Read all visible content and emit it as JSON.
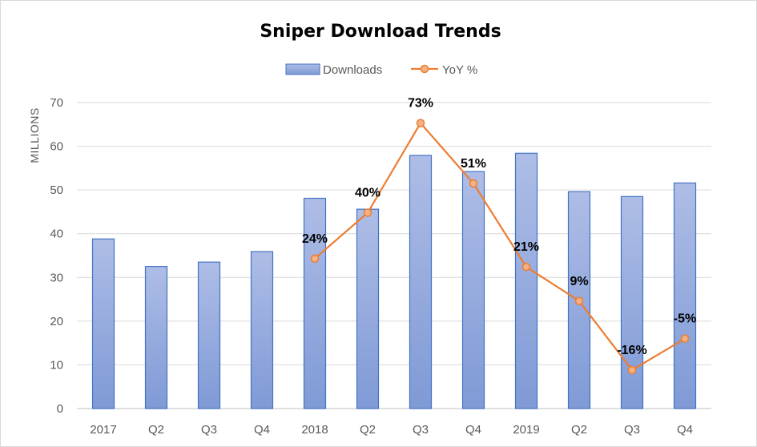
{
  "chart_data": {
    "type": "bar",
    "title": "Sniper Download Trends",
    "ylabel": "MILLIONS",
    "xlabel": "",
    "ylim": [
      0,
      70
    ],
    "yticks": [
      0,
      10,
      20,
      30,
      40,
      50,
      60,
      70
    ],
    "grid": true,
    "legend_position": "top",
    "categories": [
      "2017",
      "Q2",
      "Q3",
      "Q4",
      "2018",
      "Q2",
      "Q3",
      "Q4",
      "2019",
      "Q2",
      "Q3",
      "Q4"
    ],
    "series": [
      {
        "name": "Downloads",
        "type": "bar",
        "color": "#8fa7dc",
        "values": [
          38.8,
          32.5,
          33.5,
          35.9,
          48.1,
          45.6,
          57.9,
          54.2,
          58.4,
          49.6,
          48.5,
          51.6
        ]
      },
      {
        "name": "YoY %",
        "type": "line",
        "color": "#ed7d31",
        "plotted_values": [
          null,
          null,
          null,
          null,
          34.3,
          44.8,
          65.3,
          51.5,
          32.4,
          24.6,
          8.8,
          16.0
        ],
        "labels": [
          null,
          null,
          null,
          null,
          "24%",
          "40%",
          "73%",
          "51%",
          "21%",
          "9%",
          "-16%",
          "-5%"
        ]
      }
    ]
  }
}
